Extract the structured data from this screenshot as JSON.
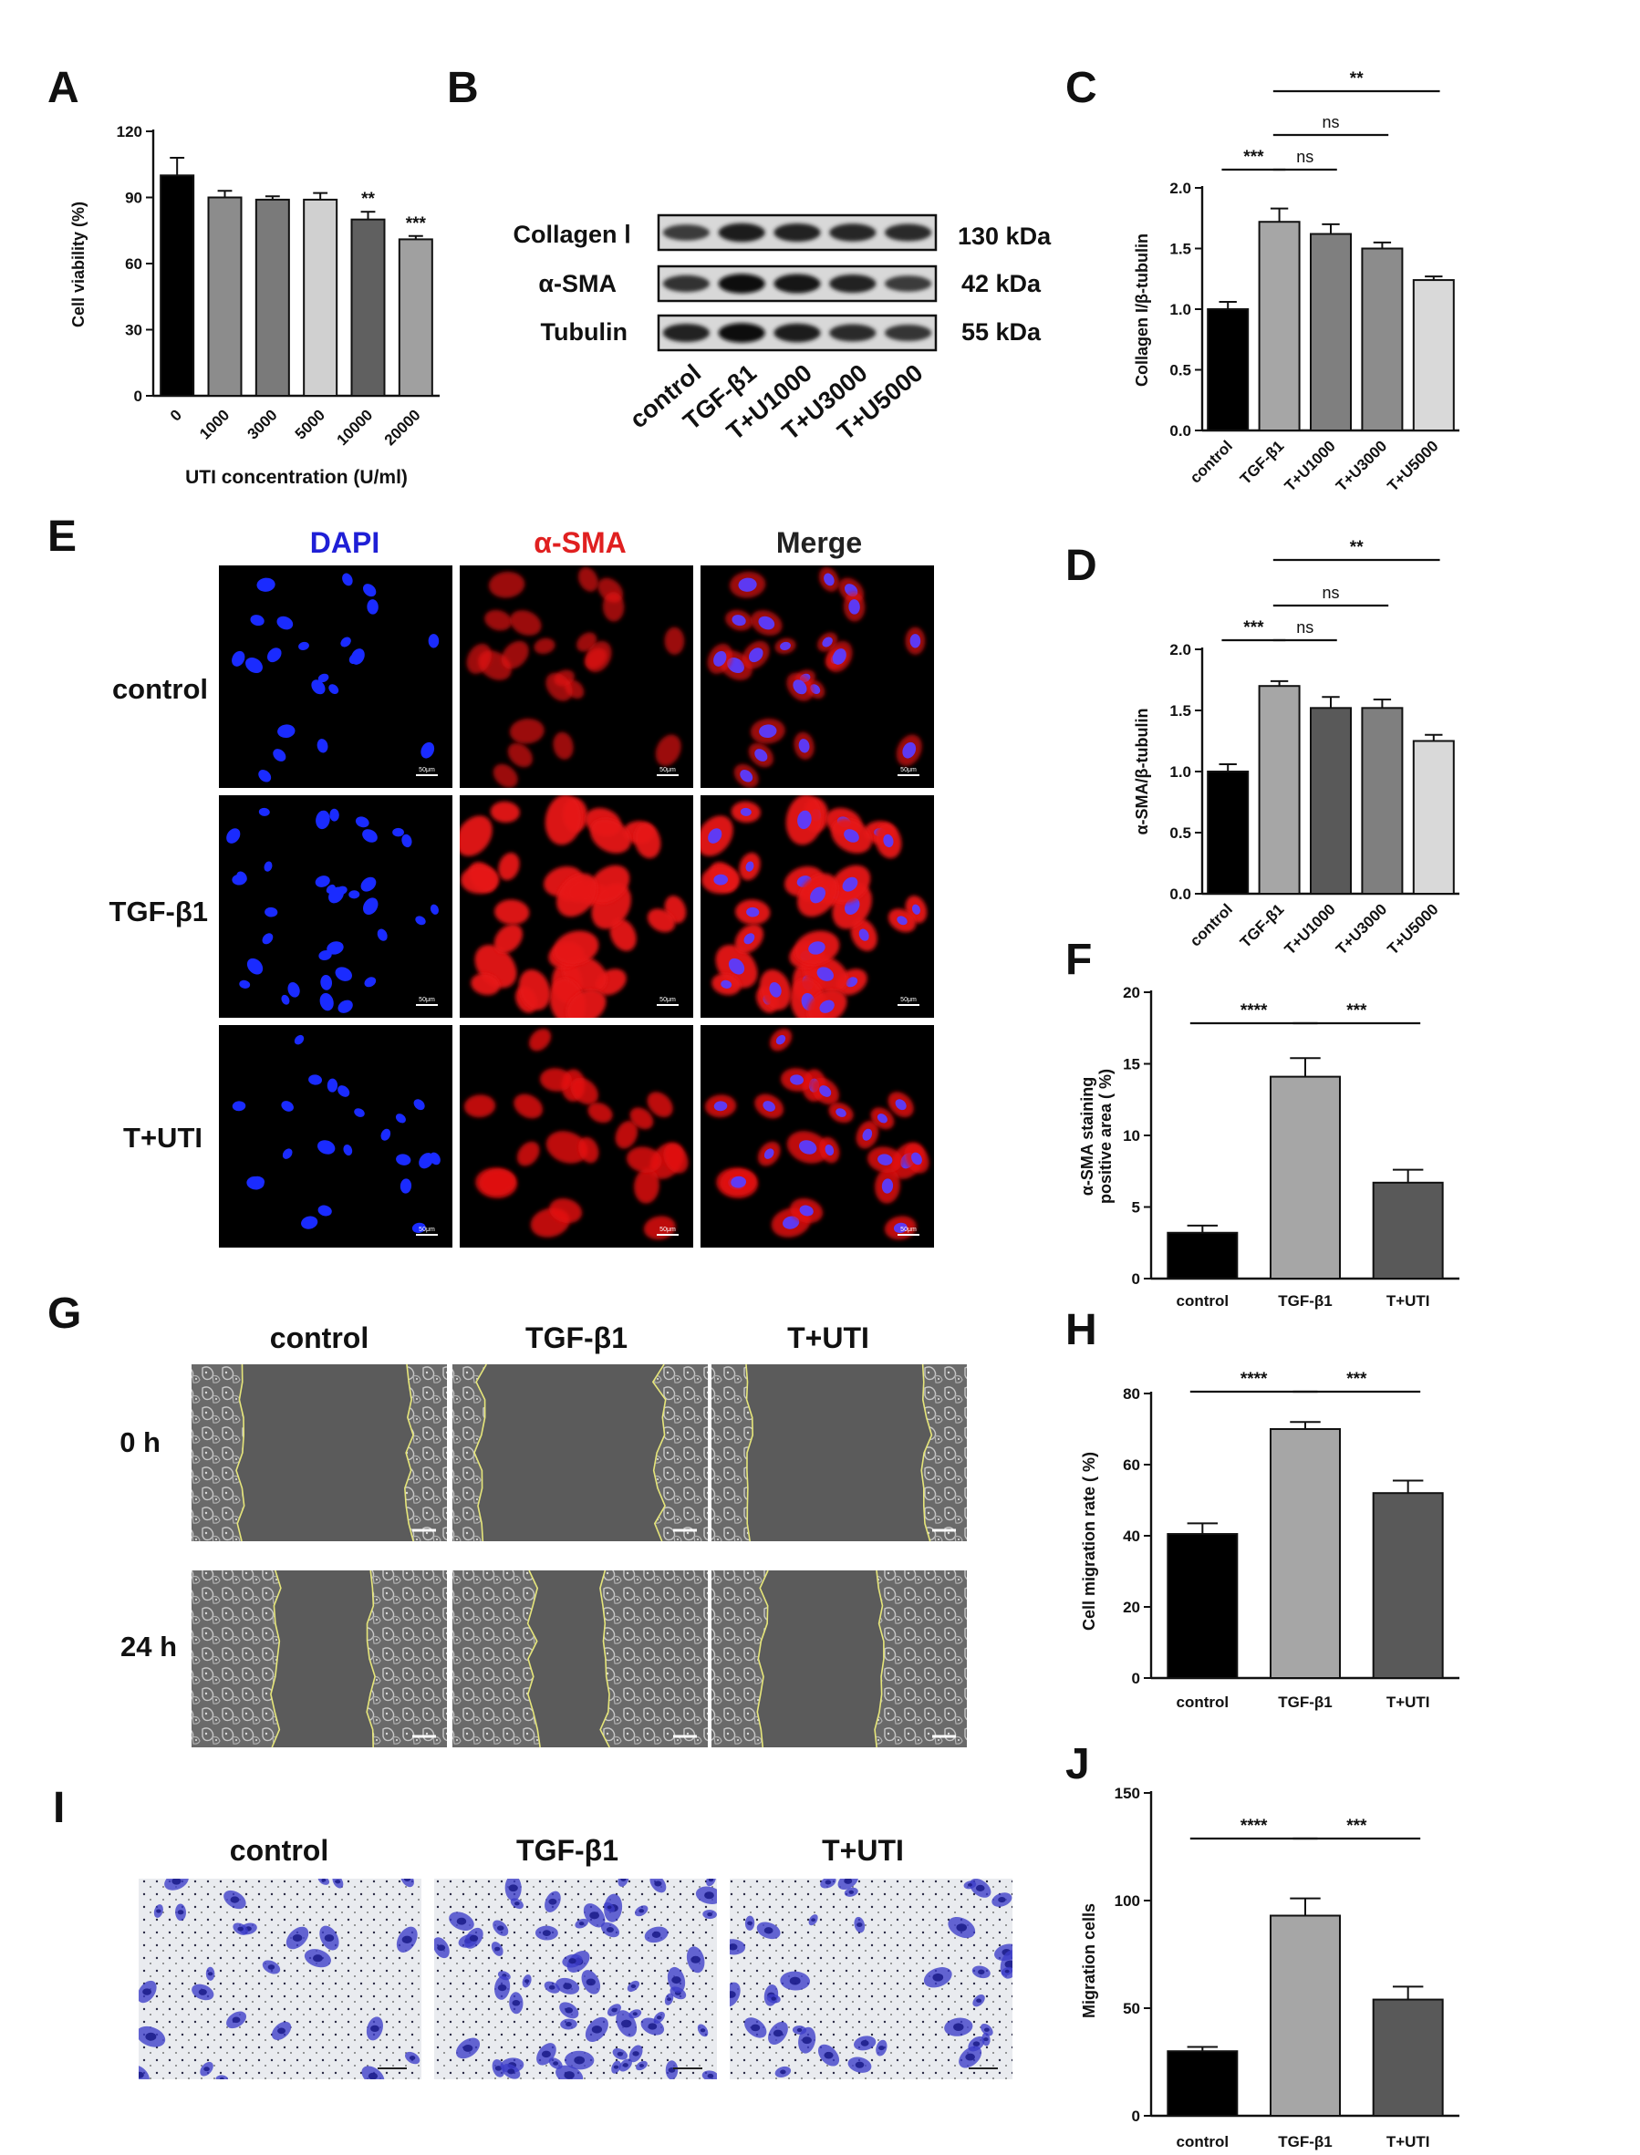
{
  "panel_letters": {
    "A": "A",
    "B": "B",
    "C": "C",
    "D": "D",
    "E": "E",
    "F": "F",
    "G": "G",
    "H": "H",
    "I": "I",
    "J": "J"
  },
  "colors": {
    "black": "#000000",
    "gray1": "#a6a6a6",
    "gray2": "#7f7f7f",
    "gray3": "#c8c8c8",
    "gray4": "#595959",
    "gray5": "#d9d9d9",
    "gray6": "#909090"
  },
  "western_blot": {
    "rows": [
      {
        "protein": "Collagen Ⅰ",
        "size": "130 kDa"
      },
      {
        "protein": "α-SMA",
        "size": "42 kDa"
      },
      {
        "protein": "Tubulin",
        "size": "55 kDa"
      }
    ],
    "lanes": [
      "control",
      "TGF-β1",
      "T+U1000",
      "T+U3000",
      "T+U5000"
    ]
  },
  "panel_E": {
    "columns": [
      "DAPI",
      "α-SMA",
      "Merge"
    ],
    "rows": [
      "control",
      "TGF-β1",
      "T+UTI"
    ],
    "column_colors": [
      "#1f1fd6",
      "#e02020",
      "#222222"
    ],
    "scale_label": "50μm"
  },
  "panel_G": {
    "columns": [
      "control",
      "TGF-β1",
      "T+UTI"
    ],
    "rows": [
      "0 h",
      "24 h"
    ]
  },
  "panel_I": {
    "columns": [
      "control",
      "TGF-β1",
      "T+UTI"
    ]
  },
  "chart_data": [
    {
      "id": "A",
      "type": "bar",
      "categories": [
        "0",
        "1000",
        "3000",
        "5000",
        "10000",
        "20000"
      ],
      "values": [
        100,
        90,
        89,
        89,
        80,
        71
      ],
      "errors": [
        8,
        3,
        1.5,
        3,
        3.5,
        1.5
      ],
      "colors": [
        "#000000",
        "#8c8c8c",
        "#7a7a7a",
        "#d0d0d0",
        "#606060",
        "#a0a0a0"
      ],
      "significance": [
        "",
        "",
        "",
        "",
        "**",
        "***"
      ],
      "xlabel": "UTI concentration (U/ml)",
      "ylabel": "Cell viability (%)",
      "ylim": [
        0,
        120
      ],
      "yticks": [
        0,
        30,
        60,
        90,
        120
      ],
      "rotate": true
    },
    {
      "id": "C",
      "type": "bar",
      "categories": [
        "control",
        "TGF-β1",
        "T+U1000",
        "T+U3000",
        "T+U5000"
      ],
      "values": [
        1.0,
        1.72,
        1.62,
        1.5,
        1.24
      ],
      "errors": [
        0.06,
        0.11,
        0.08,
        0.05,
        0.03
      ],
      "colors": [
        "#000000",
        "#a6a6a6",
        "#7f7f7f",
        "#8c8c8c",
        "#d9d9d9"
      ],
      "xlabel": "",
      "ylabel": "Collagen I/β-tubulin",
      "ylim": [
        0,
        2.0
      ],
      "yticks": [
        0.0,
        0.5,
        1.0,
        1.5,
        2.0
      ],
      "rotate": true,
      "brackets": [
        {
          "from": 0,
          "to": 1,
          "label": "***"
        },
        {
          "from": 1,
          "to": 2,
          "label": "ns"
        },
        {
          "from": 1,
          "to": 3,
          "label": "ns"
        },
        {
          "from": 1,
          "to": 4,
          "label": "**"
        }
      ]
    },
    {
      "id": "D",
      "type": "bar",
      "categories": [
        "control",
        "TGF-β1",
        "T+U1000",
        "T+U3000",
        "T+U5000"
      ],
      "values": [
        1.0,
        1.7,
        1.52,
        1.52,
        1.25
      ],
      "errors": [
        0.06,
        0.04,
        0.09,
        0.07,
        0.05
      ],
      "colors": [
        "#000000",
        "#a6a6a6",
        "#595959",
        "#7f7f7f",
        "#d9d9d9"
      ],
      "xlabel": "",
      "ylabel": "α-SMA/β-tubulin",
      "ylim": [
        0,
        2.0
      ],
      "yticks": [
        0.0,
        0.5,
        1.0,
        1.5,
        2.0
      ],
      "rotate": true,
      "brackets": [
        {
          "from": 0,
          "to": 1,
          "label": "***"
        },
        {
          "from": 1,
          "to": 2,
          "label": "ns"
        },
        {
          "from": 1,
          "to": 3,
          "label": "ns"
        },
        {
          "from": 1,
          "to": 4,
          "label": "**"
        }
      ]
    },
    {
      "id": "F",
      "type": "bar",
      "categories": [
        "control",
        "TGF-β1",
        "T+UTI"
      ],
      "values": [
        3.2,
        14.1,
        6.7
      ],
      "errors": [
        0.5,
        1.3,
        0.9
      ],
      "colors": [
        "#000000",
        "#a6a6a6",
        "#595959"
      ],
      "xlabel": "",
      "ylabel": "α-SMA staining\npositive area ( %)",
      "ylim": [
        0,
        20
      ],
      "yticks": [
        0,
        5,
        10,
        15,
        20
      ],
      "rotate": false,
      "brackets": [
        {
          "from": 0,
          "to": 1,
          "label": "****"
        },
        {
          "from": 1,
          "to": 2,
          "label": "***"
        }
      ]
    },
    {
      "id": "H",
      "type": "bar",
      "categories": [
        "control",
        "TGF-β1",
        "T+UTI"
      ],
      "values": [
        40.5,
        70,
        52
      ],
      "errors": [
        3,
        2,
        3.5
      ],
      "colors": [
        "#000000",
        "#a6a6a6",
        "#595959"
      ],
      "xlabel": "",
      "ylabel": "Cell migration rate ( %)",
      "ylim": [
        0,
        80
      ],
      "yticks": [
        0,
        20,
        40,
        60,
        80
      ],
      "rotate": false,
      "brackets": [
        {
          "from": 0,
          "to": 1,
          "label": "****"
        },
        {
          "from": 1,
          "to": 2,
          "label": "***"
        }
      ]
    },
    {
      "id": "J",
      "type": "bar",
      "categories": [
        "control",
        "TGF-β1",
        "T+UTI"
      ],
      "values": [
        30,
        93,
        54
      ],
      "errors": [
        2,
        8,
        6
      ],
      "colors": [
        "#000000",
        "#a6a6a6",
        "#595959"
      ],
      "xlabel": "",
      "ylabel": "Migration cells",
      "ylim": [
        0,
        150
      ],
      "yticks": [
        0,
        50,
        100,
        150
      ],
      "rotate": false,
      "brackets": [
        {
          "from": 0,
          "to": 1,
          "label": "****"
        },
        {
          "from": 1,
          "to": 2,
          "label": "***"
        }
      ]
    }
  ]
}
